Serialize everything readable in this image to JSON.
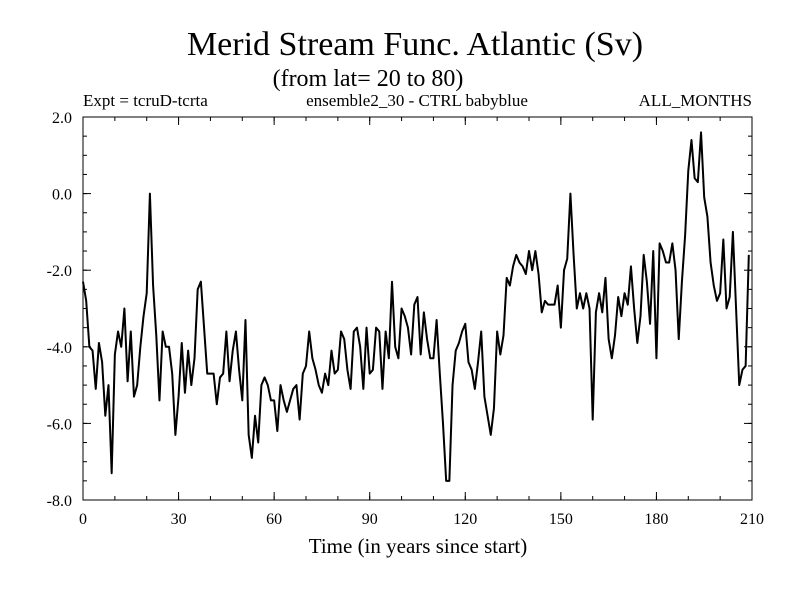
{
  "chart_data": {
    "type": "line",
    "title": "Merid Stream Func. Atlantic (Sv)",
    "subtitle": "(from lat= 20 to 80)",
    "left_label": "Expt = tcruD-tcrta",
    "center_label": "ensemble2_30 - CTRL babyblue",
    "right_label": "ALL_MONTHS",
    "xlabel": "Time (in years since start)",
    "ylabel": "",
    "xlim": [
      0,
      210
    ],
    "ylim": [
      -8.0,
      2.0
    ],
    "x_ticks": [
      0,
      30,
      60,
      90,
      120,
      150,
      180,
      210
    ],
    "x_tick_labels": [
      "0",
      "30",
      "60",
      "90",
      "120",
      "150",
      "180",
      "210"
    ],
    "y_ticks": [
      -8.0,
      -6.0,
      -4.0,
      -2.0,
      0.0,
      2.0
    ],
    "y_tick_labels": [
      "-8.0",
      "-6.0",
      "-4.0",
      "-2.0",
      "0.0",
      "2.0"
    ],
    "x_minor_step": 10,
    "y_minor_step": 0.5,
    "grid": false,
    "line_color": "#000000",
    "series": [
      {
        "name": "tcruD-tcrta",
        "values": [
          -2.3,
          -2.8,
          -4.0,
          -4.1,
          -5.1,
          -3.9,
          -4.4,
          -5.8,
          -5.0,
          -7.3,
          -4.2,
          -3.6,
          -4.0,
          -3.0,
          -4.9,
          -3.6,
          -5.3,
          -5.0,
          -4.0,
          -3.2,
          -2.6,
          0.0,
          -2.4,
          -3.7,
          -5.4,
          -3.6,
          -4.0,
          -4.0,
          -4.7,
          -6.3,
          -5.3,
          -3.9,
          -5.2,
          -4.1,
          -5.0,
          -4.3,
          -2.5,
          -2.3,
          -3.5,
          -4.7,
          -4.7,
          -4.7,
          -5.5,
          -4.8,
          -4.7,
          -3.6,
          -4.9,
          -4.1,
          -3.6,
          -4.6,
          -5.4,
          -3.3,
          -6.3,
          -6.9,
          -5.8,
          -6.5,
          -5.0,
          -4.8,
          -5.0,
          -5.4,
          -5.4,
          -6.2,
          -5.0,
          -5.4,
          -5.7,
          -5.4,
          -5.1,
          -5.0,
          -5.9,
          -4.7,
          -4.5,
          -3.6,
          -4.3,
          -4.6,
          -5.0,
          -5.2,
          -4.7,
          -5.0,
          -4.1,
          -4.7,
          -4.6,
          -3.6,
          -3.8,
          -4.6,
          -5.1,
          -3.6,
          -3.5,
          -4.0,
          -5.1,
          -3.5,
          -4.7,
          -4.6,
          -3.5,
          -3.6,
          -5.1,
          -3.6,
          -4.3,
          -2.3,
          -4.0,
          -4.3,
          -3.0,
          -3.2,
          -3.5,
          -4.2,
          -2.9,
          -2.7,
          -4.2,
          -3.1,
          -3.8,
          -4.3,
          -4.3,
          -3.3,
          -4.7,
          -6.0,
          -7.5,
          -7.5,
          -5.0,
          -4.1,
          -3.9,
          -3.6,
          -3.4,
          -4.4,
          -4.6,
          -5.1,
          -4.4,
          -3.6,
          -5.3,
          -5.8,
          -6.3,
          -5.6,
          -3.6,
          -4.2,
          -3.7,
          -2.2,
          -2.4,
          -1.9,
          -1.6,
          -1.8,
          -1.9,
          -2.1,
          -1.5,
          -2.0,
          -1.5,
          -2.1,
          -3.1,
          -2.8,
          -2.9,
          -2.9,
          -2.9,
          -2.4,
          -3.5,
          -2.0,
          -1.7,
          0.0,
          -1.6,
          -3.0,
          -2.6,
          -3.0,
          -2.6,
          -3.0,
          -5.9,
          -3.1,
          -2.6,
          -3.1,
          -2.2,
          -3.8,
          -4.3,
          -3.7,
          -2.7,
          -3.2,
          -2.6,
          -2.9,
          -1.9,
          -3.0,
          -3.9,
          -3.2,
          -1.6,
          -2.3,
          -3.4,
          -1.5,
          -4.3,
          -1.3,
          -1.5,
          -1.8,
          -1.8,
          -1.3,
          -2.0,
          -3.8,
          -2.3,
          -1.1,
          0.6,
          1.4,
          0.4,
          0.3,
          1.6,
          -0.1,
          -0.6,
          -1.8,
          -2.4,
          -2.8,
          -2.6,
          -1.2,
          -3.0,
          -2.7,
          -1.0,
          -3.0,
          -5.0,
          -4.6,
          -4.5,
          -1.6
        ]
      }
    ]
  }
}
